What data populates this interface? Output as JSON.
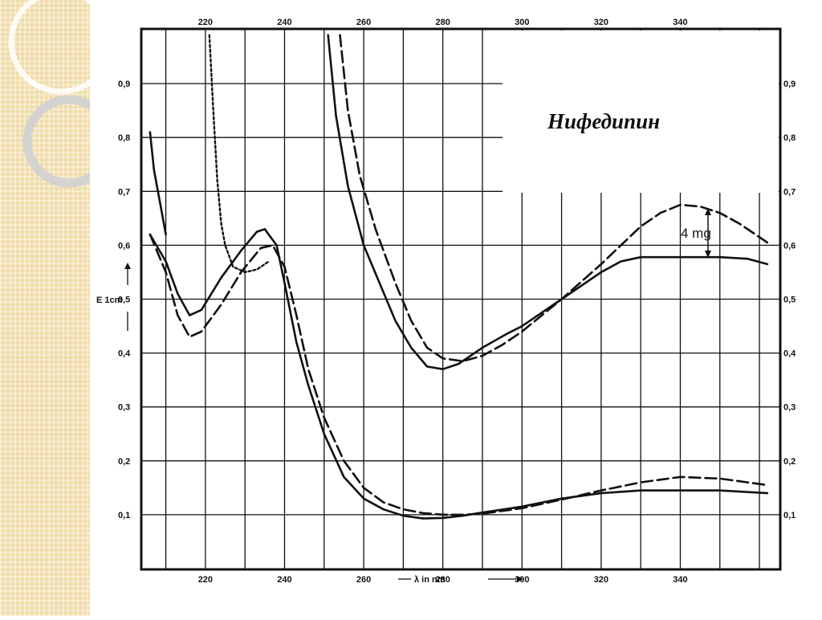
{
  "chart_data": {
    "type": "line",
    "title": "Нифедипин",
    "ylabel": "E 1cm",
    "xlabel": "λ in nm",
    "xlim": [
      204,
      362
    ],
    "ylim": [
      0,
      1.0
    ],
    "x_ticks": [
      220,
      240,
      260,
      280,
      300,
      320,
      340
    ],
    "x_ticks_bottom": [
      "220",
      "240",
      "260",
      "280",
      "300",
      "320",
      "340"
    ],
    "y_ticks": [
      0.1,
      0.2,
      0.3,
      0.4,
      0.5,
      0.6,
      0.7,
      0.8,
      0.9
    ],
    "y_tick_labels": [
      "0,1",
      "0,2",
      "0,3",
      "0,4",
      "0,5",
      "0,6",
      "0,7",
      "0,8",
      "0,9"
    ],
    "annotation": "4 mg",
    "series": [
      {
        "style": "solid",
        "points": [
          [
            206,
            0.62
          ],
          [
            210,
            0.57
          ],
          [
            213,
            0.51
          ],
          [
            216,
            0.47
          ],
          [
            219,
            0.48
          ],
          [
            224,
            0.54
          ],
          [
            229,
            0.59
          ],
          [
            233,
            0.625
          ],
          [
            235,
            0.63
          ],
          [
            238,
            0.6
          ],
          [
            240,
            0.53
          ],
          [
            243,
            0.42
          ],
          [
            246,
            0.34
          ],
          [
            250,
            0.25
          ],
          [
            255,
            0.17
          ],
          [
            260,
            0.13
          ],
          [
            265,
            0.11
          ],
          [
            270,
            0.098
          ],
          [
            275,
            0.093
          ],
          [
            280,
            0.094
          ],
          [
            285,
            0.098
          ],
          [
            290,
            0.104
          ],
          [
            300,
            0.115
          ],
          [
            310,
            0.13
          ],
          [
            320,
            0.14
          ],
          [
            330,
            0.145
          ],
          [
            340,
            0.145
          ],
          [
            350,
            0.145
          ],
          [
            362,
            0.14
          ]
        ]
      },
      {
        "style": "dashed",
        "points": [
          [
            206,
            0.62
          ],
          [
            210,
            0.55
          ],
          [
            213,
            0.47
          ],
          [
            216,
            0.43
          ],
          [
            219,
            0.44
          ],
          [
            224,
            0.49
          ],
          [
            229,
            0.55
          ],
          [
            234,
            0.595
          ],
          [
            237,
            0.6
          ],
          [
            240,
            0.56
          ],
          [
            243,
            0.47
          ],
          [
            246,
            0.37
          ],
          [
            250,
            0.28
          ],
          [
            255,
            0.2
          ],
          [
            260,
            0.15
          ],
          [
            265,
            0.123
          ],
          [
            270,
            0.11
          ],
          [
            275,
            0.103
          ],
          [
            280,
            0.1
          ],
          [
            285,
            0.1
          ],
          [
            290,
            0.102
          ],
          [
            300,
            0.112
          ],
          [
            310,
            0.128
          ],
          [
            320,
            0.145
          ],
          [
            330,
            0.16
          ],
          [
            340,
            0.17
          ],
          [
            350,
            0.167
          ],
          [
            362,
            0.155
          ]
        ]
      },
      {
        "style": "solid",
        "points": [
          [
            206,
            0.81
          ],
          [
            207,
            0.74
          ],
          [
            209,
            0.66
          ],
          [
            210,
            0.62
          ]
        ]
      },
      {
        "style": "solid",
        "points": [
          [
            251,
            0.99
          ],
          [
            253,
            0.84
          ],
          [
            256,
            0.71
          ],
          [
            260,
            0.6
          ],
          [
            264,
            0.53
          ],
          [
            268,
            0.46
          ],
          [
            272,
            0.41
          ],
          [
            276,
            0.375
          ],
          [
            280,
            0.37
          ],
          [
            284,
            0.38
          ],
          [
            290,
            0.41
          ],
          [
            296,
            0.435
          ],
          [
            300,
            0.45
          ],
          [
            310,
            0.5
          ],
          [
            320,
            0.55
          ],
          [
            325,
            0.57
          ],
          [
            330,
            0.578
          ],
          [
            340,
            0.578
          ],
          [
            350,
            0.578
          ],
          [
            357,
            0.575
          ],
          [
            362,
            0.565
          ]
        ]
      },
      {
        "style": "dashed",
        "points": [
          [
            254,
            0.99
          ],
          [
            256,
            0.85
          ],
          [
            259,
            0.73
          ],
          [
            263,
            0.63
          ],
          [
            268,
            0.53
          ],
          [
            272,
            0.46
          ],
          [
            276,
            0.41
          ],
          [
            280,
            0.39
          ],
          [
            285,
            0.385
          ],
          [
            290,
            0.395
          ],
          [
            295,
            0.415
          ],
          [
            300,
            0.44
          ],
          [
            310,
            0.5
          ],
          [
            320,
            0.565
          ],
          [
            325,
            0.6
          ],
          [
            330,
            0.635
          ],
          [
            335,
            0.66
          ],
          [
            340,
            0.675
          ],
          [
            345,
            0.672
          ],
          [
            350,
            0.66
          ],
          [
            355,
            0.64
          ],
          [
            360,
            0.615
          ],
          [
            362,
            0.605
          ]
        ]
      },
      {
        "style": "dotted",
        "points": [
          [
            221,
            0.99
          ],
          [
            222,
            0.85
          ],
          [
            223,
            0.72
          ],
          [
            224,
            0.64
          ],
          [
            225,
            0.6
          ],
          [
            227,
            0.56
          ],
          [
            230,
            0.55
          ],
          [
            233,
            0.555
          ],
          [
            236,
            0.57
          ]
        ]
      }
    ]
  }
}
